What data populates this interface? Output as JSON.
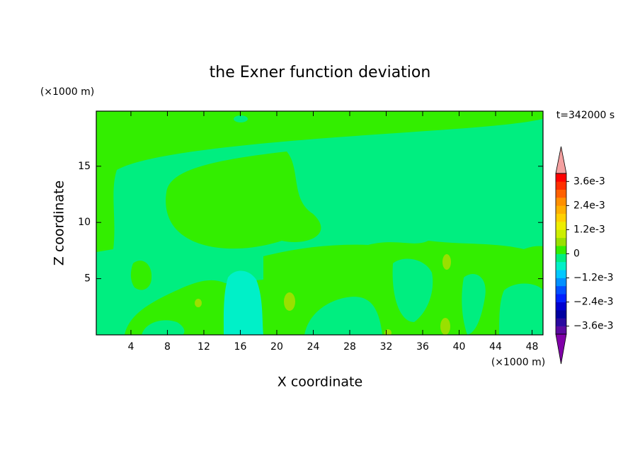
{
  "chart_data": {
    "type": "contour",
    "title": "the Exner function deviation",
    "time_label": "t=342000 s",
    "x_label": "X coordinate",
    "y_label": "Z coordinate",
    "x_unit": "(×1000 m)",
    "y_unit": "(×1000 m)",
    "xlim": [
      0.2,
      49.2
    ],
    "ylim": [
      0,
      19.9
    ],
    "xticks": [
      4,
      8,
      12,
      16,
      20,
      24,
      28,
      32,
      36,
      40,
      44,
      48
    ],
    "yticks": [
      5,
      10,
      15
    ],
    "colorbar": {
      "clim": [
        -0.004,
        0.004
      ],
      "ticks": [
        {
          "value": 0.0036,
          "label": "3.6e-3"
        },
        {
          "value": 0.0024,
          "label": "2.4e-3"
        },
        {
          "value": 0.0012,
          "label": "1.2e-3"
        },
        0,
        {
          "value": -0.0012,
          "label": "−1.2e-3"
        },
        {
          "value": -0.0024,
          "label": "−2.4e-3"
        },
        {
          "value": -0.0036,
          "label": "−3.6e-3"
        }
      ],
      "colors": [
        "#5a0aa0",
        "#2a0aa0",
        "#0000a0",
        "#0000d0",
        "#0020ff",
        "#0050ff",
        "#0090ff",
        "#00c8ff",
        "#00f0c8",
        "#00ee80",
        "#33ee00",
        "#99e000",
        "#ccee00",
        "#eeee00",
        "#ffd000",
        "#ffb000",
        "#ff9000",
        "#ff6000",
        "#ff3000",
        "#ff0000"
      ],
      "over_color": "#f4a0a0",
      "under_color": "#8000a8"
    }
  }
}
